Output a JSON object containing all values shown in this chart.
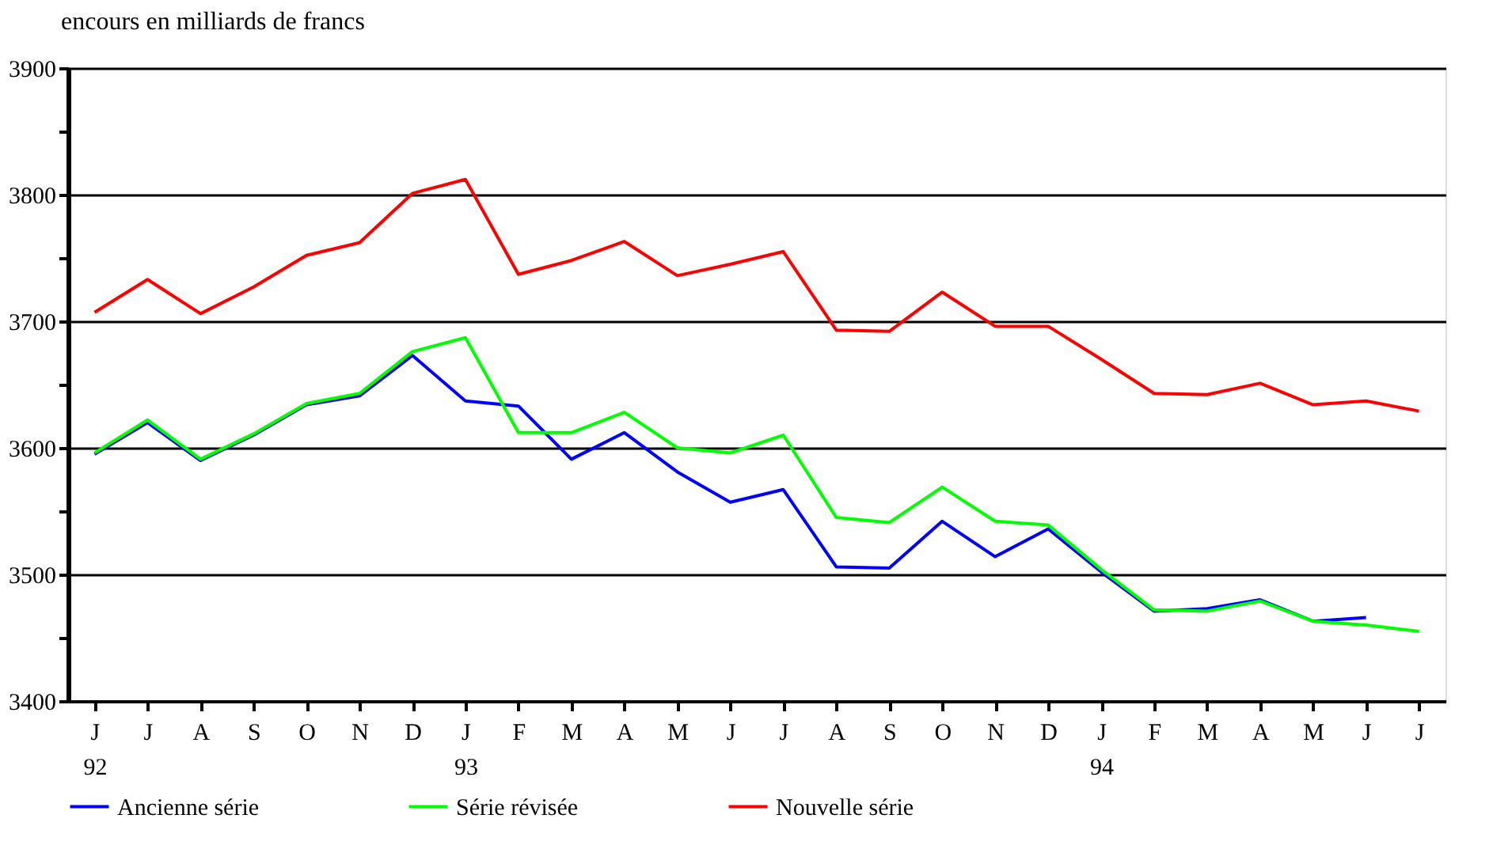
{
  "chart_data": {
    "type": "line",
    "ylabel": "encours en milliards de francs",
    "categories": [
      "J\n92",
      "J",
      "A",
      "S",
      "O",
      "N",
      "D",
      "J\n93",
      "F",
      "M",
      "A",
      "M",
      "J",
      "J",
      "A",
      "S",
      "O",
      "N",
      "D",
      "J\n94",
      "F",
      "M",
      "A",
      "M",
      "J",
      "J"
    ],
    "series": [
      {
        "name": "Ancienne série",
        "color": "#0000ff",
        "values": [
          3595,
          3620,
          3590,
          3610,
          3634,
          3641,
          3673,
          3637,
          3633,
          3591,
          3612,
          3581,
          3557,
          3567,
          3506,
          3505,
          3542,
          3514,
          3536,
          3502,
          3471,
          3473,
          3480,
          3463,
          3466,
          null
        ]
      },
      {
        "name": "Série révisée",
        "color": "#00ff00",
        "values": [
          3596,
          3622,
          3591,
          3611,
          3635,
          3643,
          3676,
          3687,
          3612,
          3612,
          3628,
          3600,
          3596,
          3610,
          3545,
          3541,
          3569,
          3542,
          3539,
          3504,
          3472,
          3471,
          3479,
          3463,
          3460,
          3455
        ]
      },
      {
        "name": "Nouvelle série",
        "color": "#ff0000",
        "values": [
          3707,
          3733,
          3706,
          3727,
          3752,
          3762,
          3801,
          3812,
          3737,
          3748,
          3763,
          3736,
          3745,
          3755,
          3693,
          3692,
          3723,
          3696,
          3696,
          3670,
          3643,
          3642,
          3651,
          3634,
          3637,
          3629
        ]
      }
    ],
    "ylim": [
      3400,
      3900
    ],
    "yticks": [
      3400,
      {
        "value": 3450,
        "label": null
      },
      3500,
      {
        "value": 3550,
        "label": null
      },
      3600,
      {
        "value": 3650,
        "label": null
      },
      3700,
      {
        "value": 3750,
        "label": null
      },
      3800,
      {
        "value": 3850,
        "label": null
      },
      3900
    ],
    "grid": "y",
    "legend": "bottom",
    "line_style": "solid",
    "marker": "none"
  }
}
